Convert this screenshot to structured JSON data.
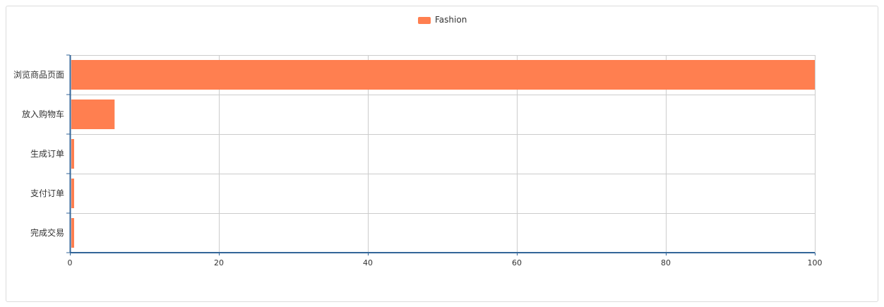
{
  "chart_data": {
    "type": "bar",
    "orientation": "horizontal",
    "categories": [
      "浏览商品页面",
      "放入购物车",
      "生成订单",
      "支付订单",
      "完成交易"
    ],
    "series": [
      {
        "name": "Fashion",
        "values": [
          100,
          6,
          0.5,
          0.5,
          0.5
        ]
      }
    ],
    "xlim": [
      0,
      100
    ],
    "xticks": [
      0,
      20,
      40,
      60,
      80,
      100
    ],
    "grid": true,
    "legend_position": "top-center",
    "colors": {
      "bar": "#FF7F50",
      "axis": "#336699",
      "grid": "#cccccc",
      "text": "#333333"
    }
  }
}
